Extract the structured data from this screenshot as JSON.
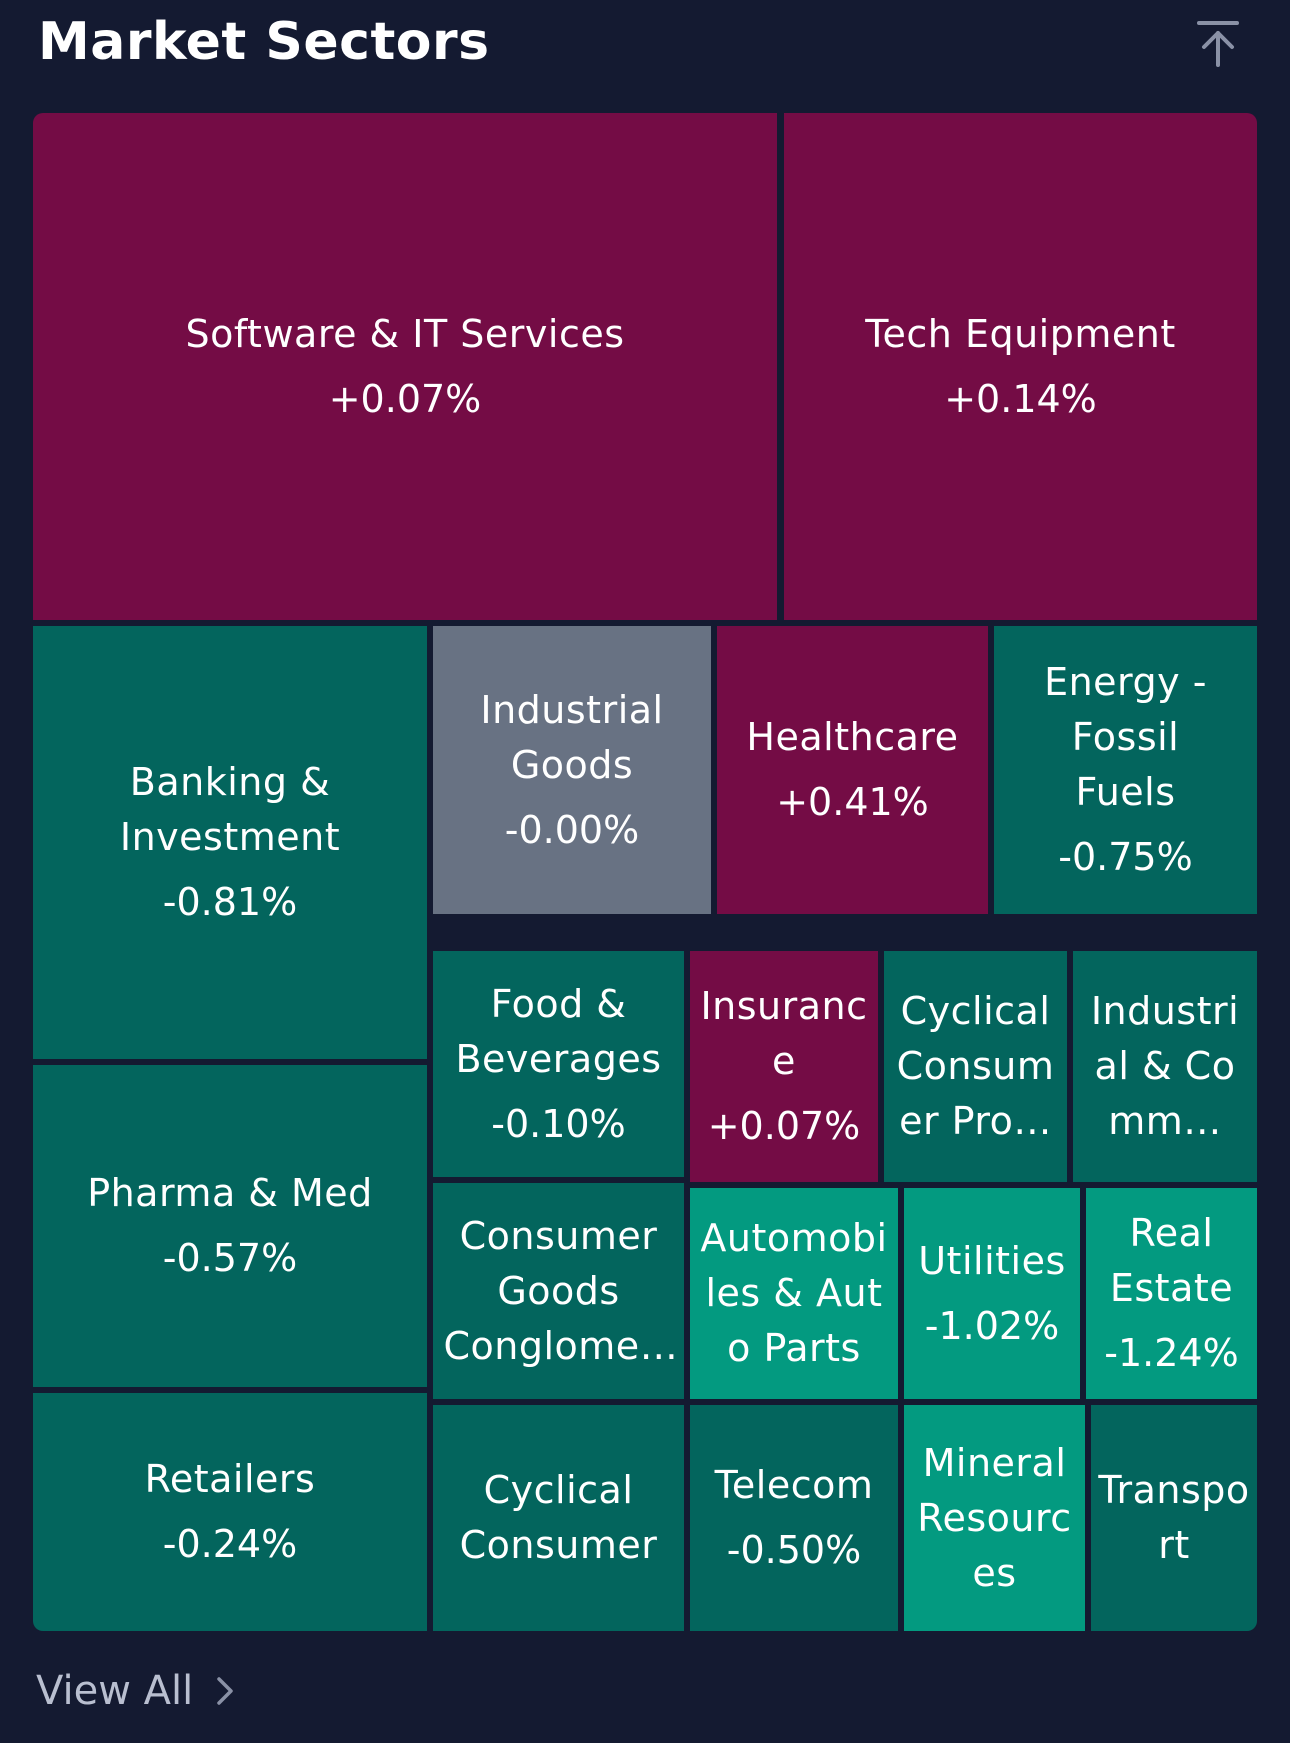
{
  "header": {
    "title": "Market Sectors",
    "collapse_icon": "arrow-up-to-top-icon"
  },
  "colors": {
    "background": "#141a31",
    "positive": "#740c45",
    "negative": "#03655d",
    "strong_negative": "#039a80",
    "neutral": "#687283"
  },
  "sectors": [
    {
      "name": "Software & IT Services",
      "change": "+0.07%"
    },
    {
      "name": "Tech Equipment",
      "change": "+0.14%"
    },
    {
      "name": "Banking & Investment",
      "change": "-0.81%"
    },
    {
      "name": "Industrial Goods",
      "change": "-0.00%"
    },
    {
      "name": "Healthcare",
      "change": "+0.41%"
    },
    {
      "name": "Energy - Fossil Fuels",
      "change": "-0.75%"
    },
    {
      "name": "Pharma & Med",
      "change": "-0.57%"
    },
    {
      "name": "Food & Beverages",
      "change": "-0.10%"
    },
    {
      "name": "Insurance",
      "change": "+0.07%"
    },
    {
      "name": "Cyclical Consumer Pro…",
      "change": ""
    },
    {
      "name": "Industrial & Comm…",
      "change": ""
    },
    {
      "name": "Consumer Goods Conglome…",
      "change": ""
    },
    {
      "name": "Automobiles & Auto Parts",
      "change": ""
    },
    {
      "name": "Utilities",
      "change": "-1.02%"
    },
    {
      "name": "Real Estate",
      "change": "-1.24%"
    },
    {
      "name": "Retailers",
      "change": "-0.24%"
    },
    {
      "name": "Cyclical Consumer",
      "change": ""
    },
    {
      "name": "Telecom",
      "change": "-0.50%"
    },
    {
      "name": "Mineral Resources",
      "change": ""
    },
    {
      "name": "Transport",
      "change": ""
    }
  ],
  "footer": {
    "view_all_label": "View All",
    "chevron_icon": "chevron-right-icon"
  }
}
